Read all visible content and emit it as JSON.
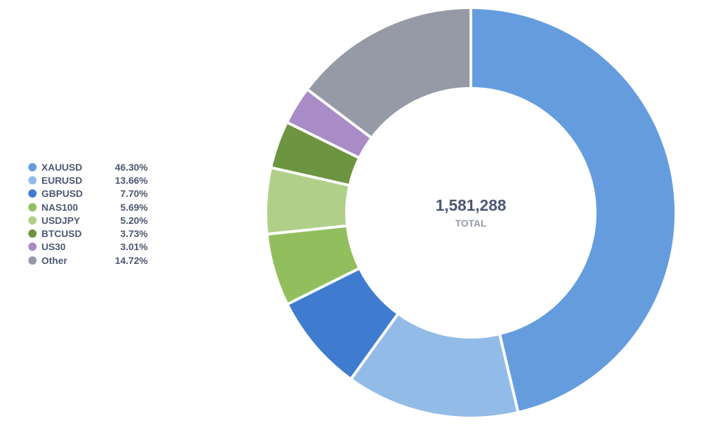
{
  "chart_data": {
    "type": "pie",
    "variant": "donut",
    "categories": [
      "XAUUSD",
      "EURUSD",
      "GBPUSD",
      "NAS100",
      "USDJPY",
      "BTCUSD",
      "US30",
      "Other"
    ],
    "values": [
      46.3,
      13.66,
      7.7,
      5.69,
      5.2,
      3.73,
      3.01,
      14.72
    ],
    "labels": [
      "46.30%",
      "13.66%",
      "7.70%",
      "5.69%",
      "5.20%",
      "3.73%",
      "3.01%",
      "14.72%"
    ],
    "colors": [
      "#659cde",
      "#93bbe8",
      "#3f7ccf",
      "#93be5d",
      "#b0d08a",
      "#6d9440",
      "#a98bc6",
      "#959aa6"
    ],
    "total_value": "1,581,288",
    "total_label": "TOTAL",
    "legend_position": "left"
  }
}
